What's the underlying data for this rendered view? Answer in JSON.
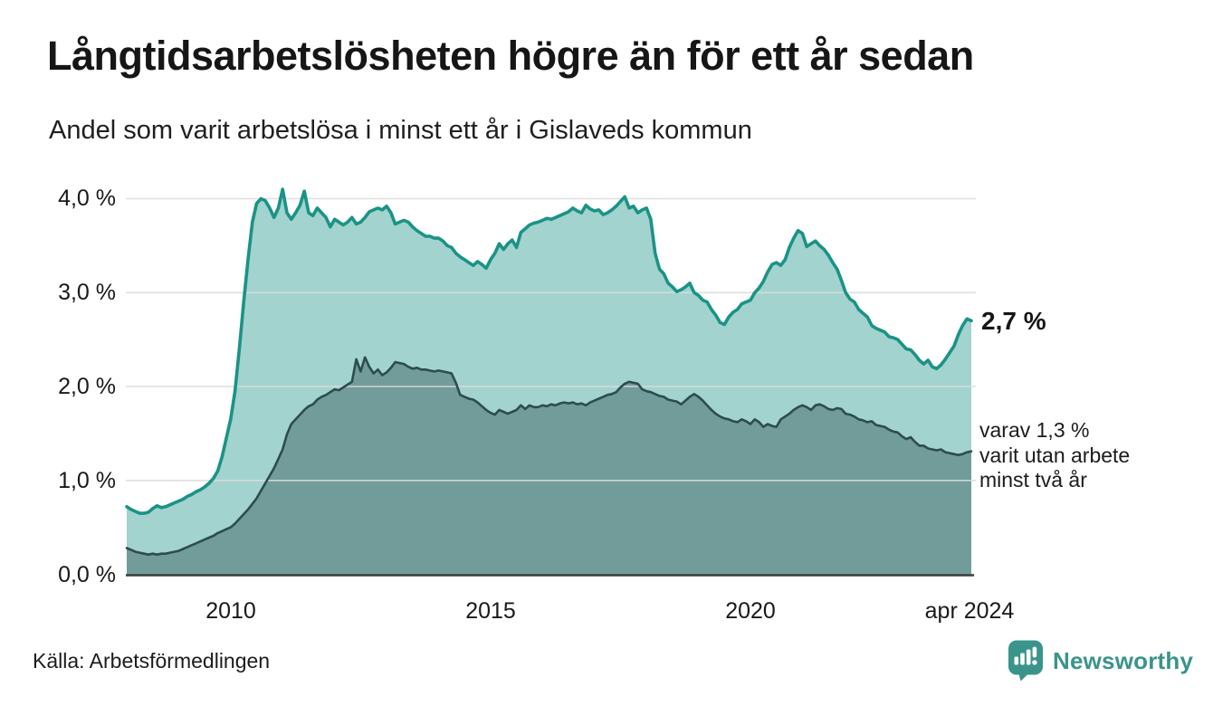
{
  "header": {
    "title": "Långtidsarbetslösheten högre än för ett år sedan",
    "subtitle": "Andel som varit arbetslösa i minst ett år i Gislaveds kommun"
  },
  "chart_data": {
    "type": "area",
    "title": "Långtidsarbetslösheten högre än för ett år sedan",
    "subtitle": "Andel som varit arbetslösa i minst ett år i Gislaveds kommun",
    "unit": "%",
    "x_start": "2008-01",
    "x_end": "2024-04",
    "frequency": "monthly",
    "ylim": [
      0,
      4.3
    ],
    "grid": "horizontal",
    "y_tick_labels": [
      "4,0 %",
      "3,0 %",
      "2,0 %",
      "1,0 %",
      "0,0 %"
    ],
    "y_tick_values": [
      4.0,
      3.0,
      2.0,
      1.0,
      0.0
    ],
    "x_tick_labels": [
      "2010",
      "2015",
      "2020",
      "apr 2024"
    ],
    "x_tick_month_index": [
      24,
      84,
      144,
      195
    ],
    "series": [
      {
        "name": "Andel arbetslösa minst ett år",
        "line_color": "#1a9386",
        "fill_color": "#a2d3ce",
        "latest_value": 2.7,
        "values": [
          0.72,
          0.69,
          0.67,
          0.65,
          0.65,
          0.66,
          0.7,
          0.73,
          0.71,
          0.72,
          0.74,
          0.76,
          0.78,
          0.8,
          0.83,
          0.85,
          0.88,
          0.9,
          0.93,
          0.97,
          1.02,
          1.1,
          1.25,
          1.45,
          1.65,
          1.95,
          2.4,
          2.9,
          3.35,
          3.75,
          3.95,
          4.0,
          3.98,
          3.9,
          3.8,
          3.9,
          4.1,
          3.85,
          3.78,
          3.85,
          3.93,
          4.08,
          3.85,
          3.82,
          3.9,
          3.85,
          3.8,
          3.7,
          3.78,
          3.75,
          3.72,
          3.75,
          3.8,
          3.73,
          3.75,
          3.8,
          3.86,
          3.88,
          3.9,
          3.88,
          3.92,
          3.85,
          3.73,
          3.75,
          3.77,
          3.75,
          3.7,
          3.66,
          3.63,
          3.6,
          3.6,
          3.58,
          3.58,
          3.55,
          3.5,
          3.48,
          3.42,
          3.38,
          3.35,
          3.32,
          3.29,
          3.33,
          3.3,
          3.26,
          3.35,
          3.42,
          3.52,
          3.46,
          3.52,
          3.56,
          3.48,
          3.64,
          3.68,
          3.72,
          3.74,
          3.75,
          3.77,
          3.79,
          3.78,
          3.8,
          3.82,
          3.84,
          3.86,
          3.9,
          3.87,
          3.85,
          3.93,
          3.89,
          3.87,
          3.88,
          3.83,
          3.85,
          3.88,
          3.92,
          3.97,
          4.02,
          3.9,
          3.92,
          3.85,
          3.88,
          3.9,
          3.78,
          3.42,
          3.25,
          3.2,
          3.1,
          3.06,
          3.01,
          3.03,
          3.06,
          3.1,
          3.0,
          2.97,
          2.92,
          2.9,
          2.82,
          2.76,
          2.68,
          2.66,
          2.74,
          2.79,
          2.82,
          2.88,
          2.9,
          2.92,
          3.0,
          3.05,
          3.12,
          3.22,
          3.3,
          3.32,
          3.29,
          3.35,
          3.48,
          3.58,
          3.66,
          3.63,
          3.49,
          3.52,
          3.55,
          3.5,
          3.46,
          3.4,
          3.32,
          3.25,
          3.13,
          3.0,
          2.93,
          2.9,
          2.82,
          2.78,
          2.74,
          2.65,
          2.62,
          2.6,
          2.58,
          2.53,
          2.52,
          2.5,
          2.45,
          2.4,
          2.39,
          2.34,
          2.28,
          2.24,
          2.28,
          2.21,
          2.19,
          2.23,
          2.29,
          2.36,
          2.43,
          2.55,
          2.65,
          2.72,
          2.7
        ]
      },
      {
        "name": "varav utan arbete minst två år",
        "line_color": "#2d4c4e",
        "fill_color": "#719c99",
        "latest_value": 1.3,
        "values": [
          0.28,
          0.26,
          0.24,
          0.23,
          0.22,
          0.21,
          0.22,
          0.21,
          0.22,
          0.22,
          0.23,
          0.24,
          0.25,
          0.27,
          0.29,
          0.31,
          0.33,
          0.35,
          0.37,
          0.39,
          0.41,
          0.44,
          0.46,
          0.48,
          0.5,
          0.54,
          0.59,
          0.64,
          0.69,
          0.75,
          0.81,
          0.89,
          0.97,
          1.05,
          1.13,
          1.23,
          1.33,
          1.49,
          1.6,
          1.65,
          1.7,
          1.75,
          1.79,
          1.81,
          1.86,
          1.89,
          1.91,
          1.94,
          1.97,
          1.96,
          1.99,
          2.02,
          2.05,
          2.29,
          2.16,
          2.31,
          2.21,
          2.14,
          2.18,
          2.12,
          2.15,
          2.2,
          2.26,
          2.25,
          2.24,
          2.21,
          2.19,
          2.2,
          2.18,
          2.18,
          2.17,
          2.16,
          2.17,
          2.16,
          2.15,
          2.14,
          2.04,
          1.91,
          1.89,
          1.87,
          1.86,
          1.83,
          1.79,
          1.75,
          1.72,
          1.7,
          1.75,
          1.73,
          1.71,
          1.73,
          1.75,
          1.8,
          1.76,
          1.8,
          1.78,
          1.78,
          1.8,
          1.79,
          1.81,
          1.8,
          1.82,
          1.83,
          1.82,
          1.83,
          1.81,
          1.82,
          1.8,
          1.83,
          1.85,
          1.87,
          1.89,
          1.91,
          1.92,
          1.94,
          1.99,
          2.03,
          2.05,
          2.04,
          2.03,
          1.97,
          1.95,
          1.94,
          1.92,
          1.9,
          1.89,
          1.86,
          1.85,
          1.84,
          1.81,
          1.85,
          1.89,
          1.92,
          1.89,
          1.85,
          1.8,
          1.75,
          1.71,
          1.68,
          1.66,
          1.65,
          1.63,
          1.62,
          1.65,
          1.63,
          1.6,
          1.65,
          1.62,
          1.57,
          1.6,
          1.58,
          1.57,
          1.65,
          1.68,
          1.71,
          1.75,
          1.78,
          1.8,
          1.78,
          1.75,
          1.8,
          1.81,
          1.79,
          1.76,
          1.75,
          1.77,
          1.76,
          1.71,
          1.7,
          1.68,
          1.65,
          1.64,
          1.62,
          1.63,
          1.59,
          1.58,
          1.57,
          1.54,
          1.52,
          1.51,
          1.47,
          1.44,
          1.46,
          1.41,
          1.37,
          1.37,
          1.34,
          1.33,
          1.32,
          1.33,
          1.3,
          1.29,
          1.28,
          1.27,
          1.28,
          1.3,
          1.31
        ]
      }
    ],
    "annotations": {
      "latest_value_label": "2,7 %",
      "secondary_lines": [
        "varav 1,3 %",
        "varit utan arbete",
        "minst två år"
      ]
    }
  },
  "footer": {
    "source": "Källa: Arbetsförmedlingen",
    "brand": "Newsworthy",
    "brand_color": "#3a948b"
  }
}
